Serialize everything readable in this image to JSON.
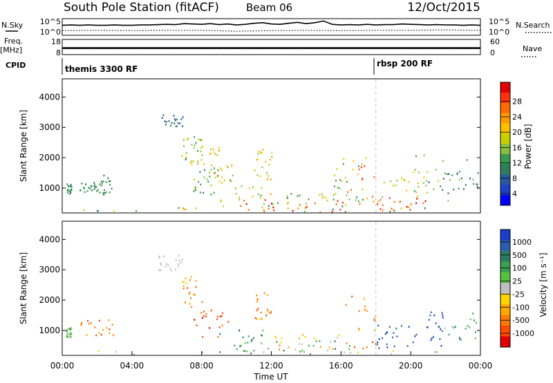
{
  "header": {
    "title": "South Pole Station (fitACF)",
    "beam": "Beam 06",
    "date": "12/Oct/2015"
  },
  "chart_data": [
    {
      "type": "line",
      "panel": "noise",
      "left_label": "N.Sky",
      "right_label": "N.Search",
      "left_ticks": [
        "10^5",
        "10^0"
      ],
      "right_ticks": [
        "10^5",
        "10^0"
      ],
      "ylim": [
        0,
        5
      ],
      "y_scale": "log10",
      "series": [
        {
          "style": "solid",
          "x": [
            0,
            0.5,
            1,
            1.5,
            2,
            2.5,
            3,
            3.5,
            4,
            4.5,
            5,
            5.5,
            6,
            6.5,
            7,
            7.5,
            8,
            8.5,
            9,
            9.5,
            10,
            10.5,
            11,
            11.5,
            12,
            12.5,
            13,
            13.5,
            14,
            14.5,
            15,
            15.5,
            16,
            16.5,
            17,
            17.5,
            18,
            18.5,
            19,
            19.5,
            20,
            20.5,
            21,
            21.5,
            22,
            22.5,
            23,
            23.5,
            24
          ],
          "y": [
            3.0,
            3.1,
            3.0,
            3.1,
            3.0,
            3.0,
            3.1,
            3.0,
            3.0,
            3.1,
            3.1,
            3.2,
            3.3,
            3.2,
            3.5,
            3.4,
            3.3,
            3.5,
            3.2,
            3.4,
            3.1,
            3.3,
            3.6,
            3.8,
            3.4,
            3.3,
            3.6,
            3.9,
            3.5,
            3.8,
            4.3,
            3.3,
            3.1,
            3.2,
            3.1,
            3.3,
            3.1,
            3.2,
            3.2,
            3.4,
            3.3,
            3.2,
            3.1,
            3.2,
            3.1,
            3.1,
            3.0,
            3.1,
            3.0
          ]
        },
        {
          "style": "dotted",
          "x": [
            0,
            2,
            4,
            6,
            8,
            10,
            12,
            14,
            16,
            18,
            20,
            22,
            24
          ],
          "y": [
            1.4,
            1.5,
            1.4,
            1.5,
            1.5,
            1.2,
            1.4,
            1.5,
            1.4,
            1.5,
            1.5,
            1.6,
            1.5
          ]
        }
      ]
    },
    {
      "type": "line",
      "panel": "frequency",
      "left_label": "Freq.",
      "left_unit": "[MHz]",
      "right_label": "Nave",
      "left_ticks": [
        "18",
        "8"
      ],
      "right_ticks": [
        "60",
        "0"
      ],
      "ylim": [
        8,
        18
      ],
      "series": [
        {
          "style": "solid",
          "x": [
            0,
            24
          ],
          "y": [
            12.3,
            12.3
          ]
        },
        {
          "style": "dotted",
          "x": [
            0,
            24
          ],
          "y": [
            11.9,
            11.9
          ]
        }
      ]
    },
    {
      "type": "annotation",
      "panel": "cpid",
      "label": "CPID",
      "segments": [
        {
          "start_hour": 0,
          "text": "themis 3300 RF"
        },
        {
          "start_hour": 18,
          "text": "rbsp 200 RF"
        }
      ]
    },
    {
      "type": "heatmap",
      "panel": "power",
      "ylabel": "Slant Range [km]",
      "xlim": [
        0,
        24
      ],
      "ylim": [
        180,
        4600
      ],
      "yticks": [
        1000,
        2000,
        3000,
        4000
      ],
      "mode_change_hour": 18,
      "colorbar": {
        "label": "Power [dB]",
        "ticks": [
          "28",
          "24",
          "20",
          "16",
          "12",
          "8",
          "4"
        ],
        "colors": [
          "#e00000",
          "#ff3010",
          "#ff6a00",
          "#ff9a00",
          "#ffc000",
          "#c8d000",
          "#88c040",
          "#3a9a50",
          "#2e7d5c",
          "#2a5aa0",
          "#1c40c8",
          "#0000ff"
        ],
        "range": [
          0,
          30
        ]
      },
      "clusters": [
        {
          "t": [
            0.2,
            0.5
          ],
          "r": [
            800,
            1200
          ],
          "v": [
            8,
            12
          ]
        },
        {
          "t": [
            1.0,
            2.0
          ],
          "r": [
            850,
            1200
          ],
          "v": [
            7,
            12
          ]
        },
        {
          "t": [
            2.0,
            3.0
          ],
          "r": [
            800,
            1450
          ],
          "v": [
            7,
            12
          ]
        },
        {
          "t": [
            5.3,
            6.9
          ],
          "r": [
            3050,
            3450
          ],
          "v": [
            5,
            8
          ]
        },
        {
          "t": [
            6.8,
            8.0
          ],
          "r": [
            1850,
            2800
          ],
          "v": [
            10,
            18
          ]
        },
        {
          "t": [
            7.3,
            9.0
          ],
          "r": [
            1800,
            2500
          ],
          "v": [
            12,
            20
          ]
        },
        {
          "t": [
            7.5,
            8.8
          ],
          "r": [
            800,
            1700
          ],
          "v": [
            8,
            16
          ]
        },
        {
          "t": [
            8.5,
            9.8
          ],
          "r": [
            1100,
            1800
          ],
          "v": [
            10,
            22
          ]
        },
        {
          "t": [
            9.0,
            12.0
          ],
          "r": [
            300,
            1200
          ],
          "v": [
            12,
            22
          ]
        },
        {
          "t": [
            11.0,
            12.0
          ],
          "r": [
            1300,
            2300
          ],
          "v": [
            12,
            22
          ]
        },
        {
          "t": [
            9.6,
            16.5
          ],
          "r": [
            200,
            650
          ],
          "v": [
            22,
            30
          ]
        },
        {
          "t": [
            12.0,
            16.0
          ],
          "r": [
            500,
            900
          ],
          "v": [
            10,
            18
          ]
        },
        {
          "t": [
            16.0,
            18.0
          ],
          "r": [
            450,
            2200
          ],
          "v": [
            18,
            30
          ]
        },
        {
          "t": [
            15.5,
            17.5
          ],
          "r": [
            300,
            2000
          ],
          "v": [
            8,
            16
          ]
        },
        {
          "t": [
            18.0,
            21.0
          ],
          "r": [
            200,
            700
          ],
          "v": [
            22,
            30
          ]
        },
        {
          "t": [
            18.0,
            21.0
          ],
          "r": [
            700,
            1600
          ],
          "v": [
            12,
            20
          ]
        },
        {
          "t": [
            20.0,
            23.5
          ],
          "r": [
            600,
            2200
          ],
          "v": [
            8,
            16
          ]
        },
        {
          "t": [
            21.0,
            24.0
          ],
          "r": [
            800,
            1600
          ],
          "v": [
            6,
            14
          ]
        },
        {
          "t": [
            0.0,
            24.0
          ],
          "r": [
            180,
            380
          ],
          "v": [
            8,
            24
          ]
        }
      ]
    },
    {
      "type": "heatmap",
      "panel": "velocity",
      "xlabel": "Time UT",
      "ylabel": "Slant Range [km]",
      "xlim": [
        0,
        24
      ],
      "ylim": [
        180,
        4600
      ],
      "xticks": [
        "00:00",
        "04:00",
        "08:00",
        "12:00",
        "16:00",
        "20:00",
        "00:00"
      ],
      "yticks": [
        1000,
        2000,
        3000,
        4000
      ],
      "mode_change_hour": 18,
      "colorbar": {
        "label": "Velocity [m s⁻¹]",
        "ticks": [
          "1000",
          "500",
          "100",
          "25",
          "-25",
          "-100",
          "-500",
          "-1000"
        ],
        "colors": [
          "#1a3ec8",
          "#2a5cb0",
          "#2f7a60",
          "#3ca050",
          "#58c040",
          "#c0c0c0",
          "#ffd400",
          "#ffa800",
          "#ff7a00",
          "#ff4a00",
          "#e00000"
        ]
      },
      "clusters": [
        {
          "t": [
            0.2,
            0.5
          ],
          "r": [
            800,
            1200
          ],
          "v": [
            3,
            5
          ]
        },
        {
          "t": [
            1.0,
            3.0
          ],
          "r": [
            850,
            1400
          ],
          "v": [
            7,
            9
          ]
        },
        {
          "t": [
            5.3,
            6.9
          ],
          "r": [
            3000,
            3500
          ],
          "v": [
            5,
            5
          ]
        },
        {
          "t": [
            6.8,
            8.0
          ],
          "r": [
            1800,
            2800
          ],
          "v": [
            6,
            9
          ]
        },
        {
          "t": [
            7.5,
            9.5
          ],
          "r": [
            800,
            1700
          ],
          "v": [
            8,
            10
          ]
        },
        {
          "t": [
            9.0,
            12.0
          ],
          "r": [
            300,
            1100
          ],
          "v": [
            1,
            4
          ]
        },
        {
          "t": [
            11.0,
            12.0
          ],
          "r": [
            1300,
            2300
          ],
          "v": [
            7,
            9
          ]
        },
        {
          "t": [
            9.6,
            16.5
          ],
          "r": [
            200,
            700
          ],
          "v": [
            2,
            4
          ]
        },
        {
          "t": [
            12.0,
            16.0
          ],
          "r": [
            400,
            900
          ],
          "v": [
            5,
            8
          ]
        },
        {
          "t": [
            16.0,
            18.0
          ],
          "r": [
            400,
            2200
          ],
          "v": [
            7,
            9
          ]
        },
        {
          "t": [
            18.0,
            20.0
          ],
          "r": [
            300,
            1200
          ],
          "v": [
            0,
            2
          ]
        },
        {
          "t": [
            20.0,
            22.0
          ],
          "r": [
            500,
            1700
          ],
          "v": [
            0,
            1
          ]
        },
        {
          "t": [
            21.5,
            24.0
          ],
          "r": [
            700,
            1600
          ],
          "v": [
            2,
            5
          ]
        },
        {
          "t": [
            0.0,
            24.0
          ],
          "r": [
            180,
            380
          ],
          "v": [
            4,
            6
          ]
        }
      ]
    }
  ]
}
